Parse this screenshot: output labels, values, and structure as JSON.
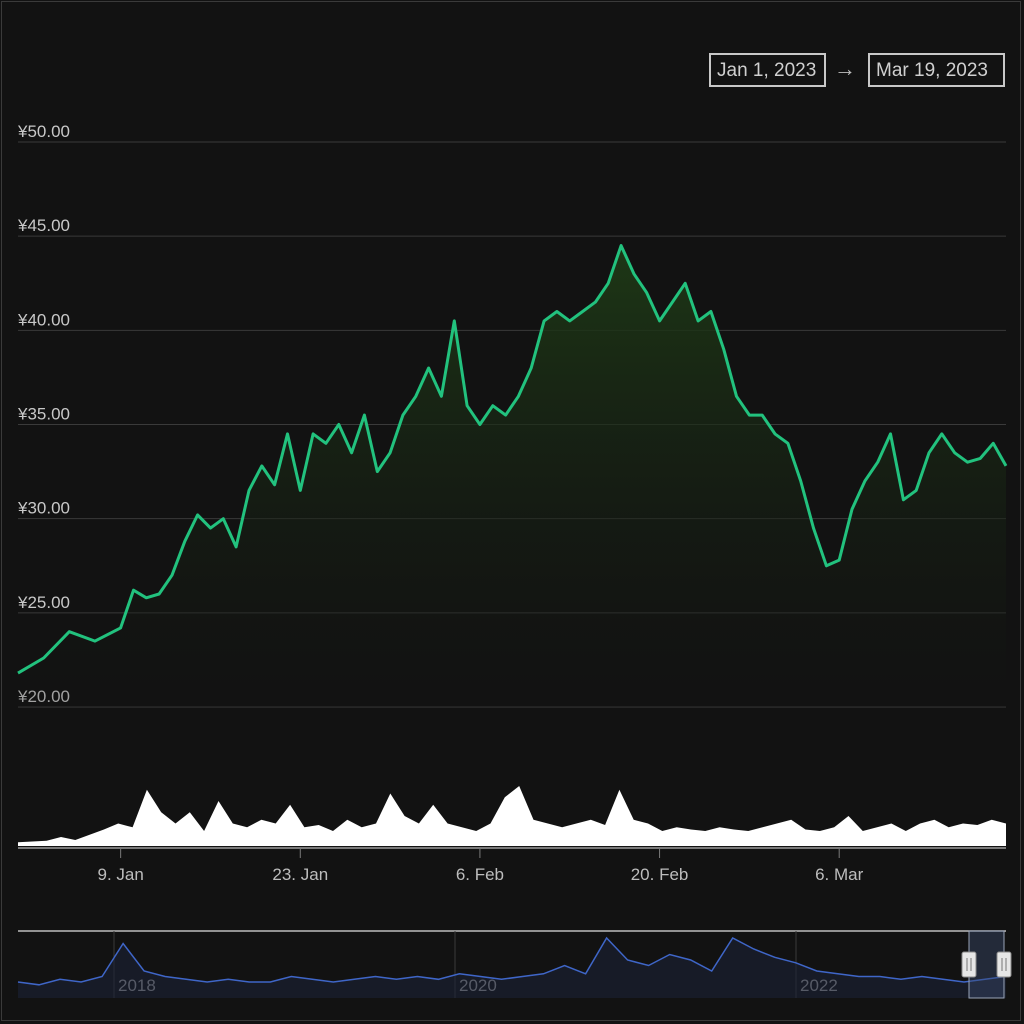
{
  "range_selector": {
    "from": "Jan 1, 2023",
    "arrow": "→",
    "to": "Mar 19, 2023"
  },
  "colors": {
    "background": "#121212",
    "price_line": "#22c27e",
    "area_fill_top": "#1e3a16",
    "volume": "#ffffff",
    "navigator_line": "#3f66c8",
    "grid": "#3a3a3a"
  },
  "chart_data": {
    "type": "line",
    "currency": "¥",
    "y_ticks": [
      "¥50.00",
      "¥45.00",
      "¥40.00",
      "¥35.00",
      "¥30.00",
      "¥25.00",
      "¥20.00"
    ],
    "ylim": [
      20,
      50
    ],
    "x_ticks": [
      "9. Jan",
      "23. Jan",
      "6. Feb",
      "20. Feb",
      "6. Mar"
    ],
    "x_tick_days": [
      8,
      22,
      36,
      50,
      64
    ],
    "xlim_days": [
      0,
      77
    ],
    "price_series": {
      "x_days": [
        0,
        2,
        4,
        6,
        8,
        9,
        10,
        11,
        12,
        13,
        14,
        15,
        16,
        17,
        18,
        19,
        20,
        21,
        22,
        23,
        24,
        25,
        26,
        27,
        28,
        29,
        30,
        31,
        32,
        33,
        34,
        35,
        36,
        37,
        38,
        39,
        40,
        41,
        42,
        43,
        44,
        45,
        46,
        47,
        48,
        49,
        50,
        51,
        52,
        53,
        54,
        55,
        56,
        57,
        58,
        59,
        60,
        61,
        62,
        63,
        64,
        65,
        66,
        67,
        68,
        69,
        70,
        71,
        72,
        73,
        74,
        75,
        76,
        77
      ],
      "values": [
        21.8,
        22.6,
        24.0,
        23.5,
        24.2,
        26.2,
        25.8,
        26.0,
        27.0,
        28.8,
        30.2,
        29.5,
        30.0,
        28.5,
        31.5,
        32.8,
        31.8,
        34.5,
        31.5,
        34.5,
        34.0,
        35.0,
        33.5,
        35.5,
        32.5,
        33.5,
        35.5,
        36.5,
        38.0,
        36.5,
        40.5,
        36.0,
        35.0,
        36.0,
        35.5,
        36.5,
        38.0,
        40.5,
        41.0,
        40.5,
        41.0,
        41.5,
        42.5,
        44.5,
        43.0,
        42.0,
        40.5,
        41.5,
        42.5,
        40.5,
        41.0,
        39.0,
        36.5,
        35.5,
        35.5,
        34.5,
        34.0,
        32.0,
        29.5,
        27.5,
        27.8,
        30.5,
        32.0,
        33.0,
        34.5,
        31.0,
        31.5,
        33.5,
        34.5,
        33.5,
        33.0,
        33.2,
        34.0,
        32.8
      ]
    },
    "volume_series": {
      "note_units": "relative",
      "values": [
        0.05,
        0.06,
        0.07,
        0.12,
        0.08,
        0.15,
        0.22,
        0.3,
        0.25,
        0.75,
        0.45,
        0.3,
        0.45,
        0.2,
        0.6,
        0.3,
        0.25,
        0.35,
        0.3,
        0.55,
        0.25,
        0.28,
        0.2,
        0.35,
        0.25,
        0.3,
        0.7,
        0.4,
        0.3,
        0.55,
        0.3,
        0.25,
        0.2,
        0.3,
        0.65,
        0.8,
        0.35,
        0.3,
        0.25,
        0.3,
        0.35,
        0.28,
        0.75,
        0.35,
        0.3,
        0.2,
        0.25,
        0.22,
        0.2,
        0.25,
        0.22,
        0.2,
        0.25,
        0.3,
        0.35,
        0.22,
        0.2,
        0.25,
        0.4,
        0.2,
        0.25,
        0.3,
        0.2,
        0.3,
        0.35,
        0.25,
        0.3,
        0.28,
        0.35,
        0.3
      ]
    },
    "navigator": {
      "labels": [
        "2018",
        "2020",
        "2022"
      ],
      "values": [
        0.2,
        0.15,
        0.25,
        0.2,
        0.3,
        0.9,
        0.4,
        0.3,
        0.25,
        0.2,
        0.25,
        0.2,
        0.2,
        0.3,
        0.25,
        0.2,
        0.25,
        0.3,
        0.25,
        0.3,
        0.25,
        0.35,
        0.3,
        0.25,
        0.3,
        0.35,
        0.5,
        0.35,
        1.0,
        0.6,
        0.5,
        0.7,
        0.6,
        0.4,
        1.0,
        0.8,
        0.65,
        0.55,
        0.4,
        0.35,
        0.3,
        0.3,
        0.25,
        0.3,
        0.25,
        0.2,
        0.25,
        0.3
      ]
    }
  }
}
